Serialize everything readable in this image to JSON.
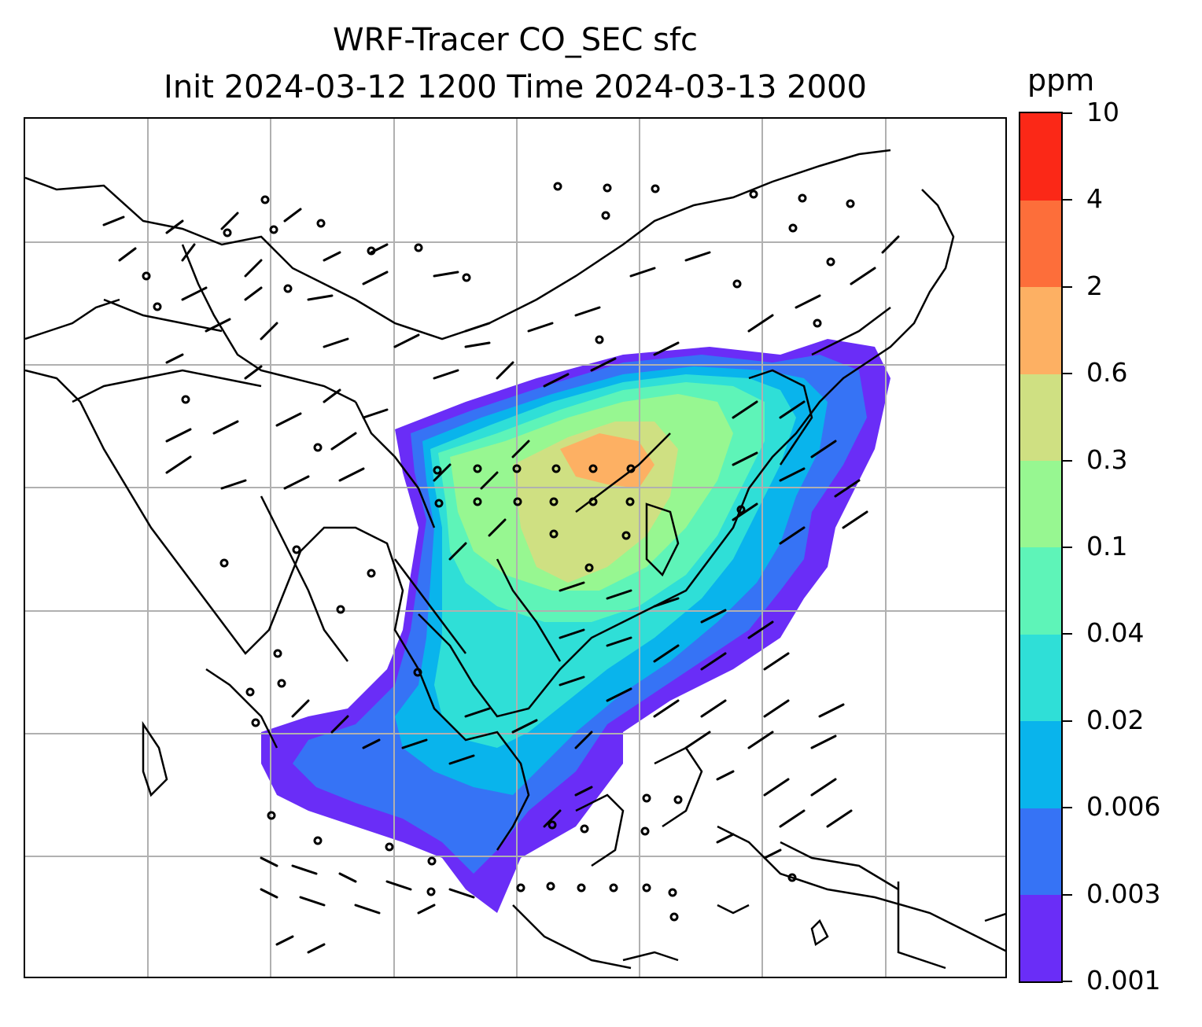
{
  "title": {
    "line1": "WRF-Tracer CO_SEC sfc",
    "line2": "Init 2024-03-12 1200 Time 2024-03-13 2000"
  },
  "colorbar": {
    "unit": "ppm",
    "tick_labels": [
      "0.001",
      "0.003",
      "0.006",
      "0.02",
      "0.04",
      "0.1",
      "0.3",
      "0.6",
      "2",
      "4",
      "10"
    ],
    "colors": [
      "#6a2df7",
      "#3673f5",
      "#09b4ec",
      "#2fdfd7",
      "#5ef4b8",
      "#97f791",
      "#cfe082",
      "#fdb063",
      "#fd6e3a",
      "#fb2817"
    ]
  },
  "map": {
    "projection": "lat-lon",
    "gridlines": true,
    "features": [
      "coastlines",
      "country borders",
      "wind barbs",
      "CO_SEC surface concentration shading"
    ]
  }
}
